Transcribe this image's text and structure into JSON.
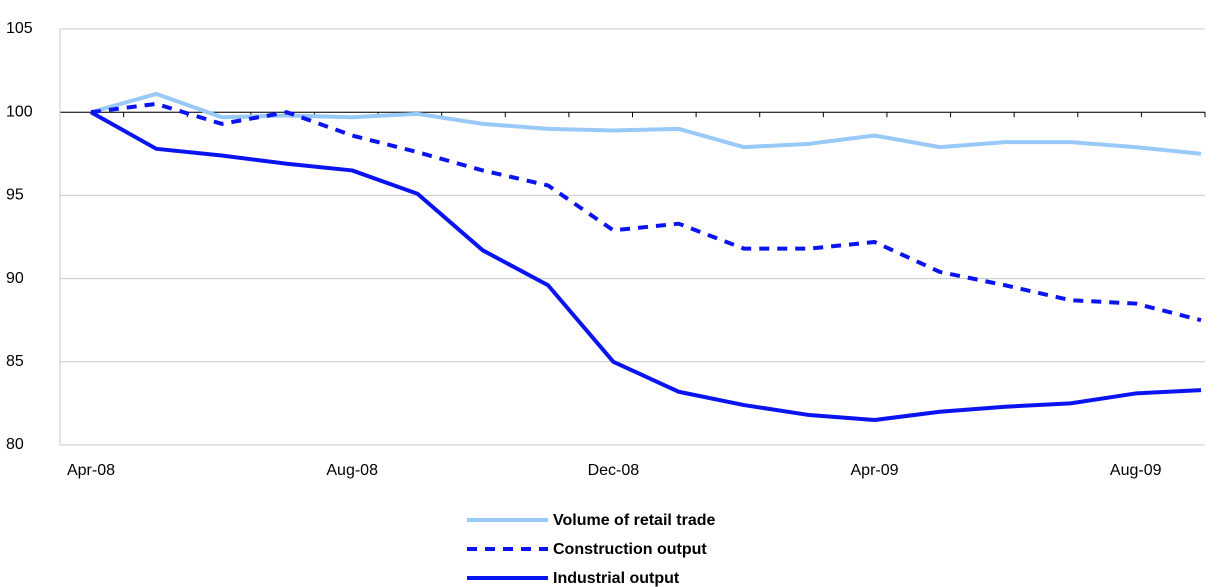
{
  "chart_data": {
    "type": "line",
    "categories": [
      "Apr-08",
      null,
      null,
      null,
      "Aug-08",
      null,
      null,
      null,
      "Dec-08",
      null,
      null,
      null,
      "Apr-09",
      null,
      null,
      null,
      "Aug-09",
      null
    ],
    "series": [
      {
        "name": "Volume of retail trade",
        "color": "#99c9f7",
        "dash": false,
        "values": [
          100,
          101.1,
          99.7,
          99.8,
          99.7,
          99.9,
          99.3,
          99.0,
          98.9,
          99.0,
          97.9,
          98.1,
          98.6,
          97.9,
          98.2,
          98.2,
          97.9,
          97.5
        ]
      },
      {
        "name": "Construction output",
        "color": "#0a14f0",
        "dash": true,
        "values": [
          100,
          100.5,
          99.3,
          100.0,
          98.6,
          97.6,
          96.5,
          95.6,
          92.9,
          93.3,
          91.8,
          91.8,
          92.2,
          90.4,
          89.6,
          88.7,
          88.5,
          87.5
        ]
      },
      {
        "name": "Industrial output",
        "color": "#0a14f0",
        "dash": false,
        "values": [
          100,
          97.8,
          97.4,
          96.9,
          96.5,
          95.1,
          91.7,
          89.6,
          85.0,
          83.2,
          82.4,
          81.8,
          81.5,
          82.0,
          82.3,
          82.5,
          83.1,
          83.3
        ]
      }
    ],
    "ylim": [
      80,
      105
    ],
    "yticks": [
      80,
      85,
      90,
      95,
      100,
      105
    ],
    "grid": true,
    "axis_crossing": 100,
    "legend": "bottom"
  }
}
